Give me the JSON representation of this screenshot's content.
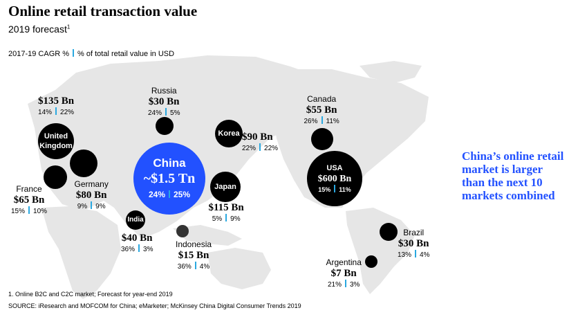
{
  "title": "Online retail transaction value",
  "subtitle": "2019 forecast",
  "subtitle_note": "1",
  "legend": {
    "cagr_label": "2017-19 CAGR %",
    "share_label": "% of total retail value in USD"
  },
  "colors": {
    "bubble": "#000000",
    "highlight": "#2251ff",
    "indonesia": "#333333",
    "separator": "#29a8e0",
    "map": "#e6e6e6"
  },
  "chart_data": {
    "type": "bubble-map",
    "title": "Online retail transaction value",
    "subtitle": "2019 forecast",
    "series": [
      {
        "country": "China",
        "value": "~$1.5 Tn",
        "value_usd_bn": 1500,
        "cagr": "24%",
        "share": "25%"
      },
      {
        "country": "USA",
        "value": "$600 Bn",
        "value_usd_bn": 600,
        "cagr": "15%",
        "share": "11%"
      },
      {
        "country": "United Kingdom",
        "value": "$135 Bn",
        "value_usd_bn": 135,
        "cagr": "14%",
        "share": "22%"
      },
      {
        "country": "Japan",
        "value": "$115 Bn",
        "value_usd_bn": 115,
        "cagr": "5%",
        "share": "9%"
      },
      {
        "country": "Korea",
        "value": "$90 Bn",
        "value_usd_bn": 90,
        "cagr": "22%",
        "share": "22%"
      },
      {
        "country": "Germany",
        "value": "$80 Bn",
        "value_usd_bn": 80,
        "cagr": "9%",
        "share": "9%"
      },
      {
        "country": "France",
        "value": "$65 Bn",
        "value_usd_bn": 65,
        "cagr": "15%",
        "share": "10%"
      },
      {
        "country": "Canada",
        "value": "$55 Bn",
        "value_usd_bn": 55,
        "cagr": "26%",
        "share": "11%"
      },
      {
        "country": "India",
        "value": "$40 Bn",
        "value_usd_bn": 40,
        "cagr": "36%",
        "share": "3%"
      },
      {
        "country": "Russia",
        "value": "$30 Bn",
        "value_usd_bn": 30,
        "cagr": "24%",
        "share": "5%"
      },
      {
        "country": "Brazil",
        "value": "$30 Bn",
        "value_usd_bn": 30,
        "cagr": "13%",
        "share": "4%"
      },
      {
        "country": "Indonesia",
        "value": "$15 Bn",
        "value_usd_bn": 15,
        "cagr": "36%",
        "share": "4%"
      },
      {
        "country": "Argentina",
        "value": "$7 Bn",
        "value_usd_bn": 7,
        "cagr": "21%",
        "share": "3%"
      }
    ]
  },
  "callout": "China’s online retail market is larger than the next 10 markets combined",
  "footnotes": [
    "1. Online B2C and C2C market; Forecast for year-end 2019",
    "SOURCE: iResearch and MOFCOM for China; eMarketer; McKinsey China Digital Consumer Trends 2019"
  ]
}
